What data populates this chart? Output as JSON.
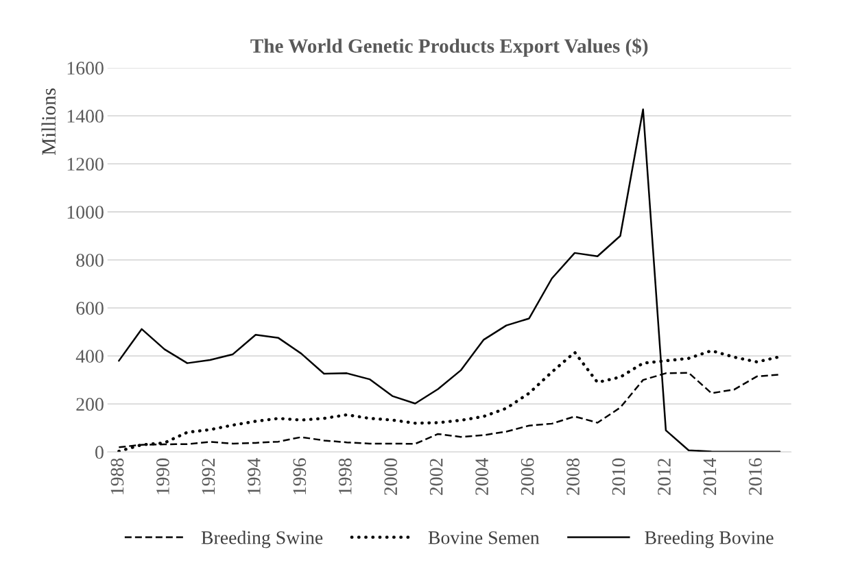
{
  "chart_data": {
    "type": "line",
    "title": "The World Genetic Products Export Values ($)",
    "ylabel": "Millions",
    "categories": [
      "1988",
      null,
      "1990",
      null,
      "1992",
      null,
      "1994",
      null,
      "1996",
      null,
      "1998",
      null,
      "2000",
      null,
      "2002",
      null,
      "2004",
      null,
      "2006",
      null,
      "2008",
      null,
      "2010",
      null,
      "2012",
      null,
      "2014",
      null,
      "2016",
      null
    ],
    "series": [
      {
        "name": "Breeding Swine",
        "color": "#000000",
        "line_style": "dashed",
        "values": [
          20,
          30,
          32,
          33,
          42,
          35,
          38,
          43,
          62,
          48,
          40,
          35,
          35,
          34,
          75,
          63,
          70,
          85,
          110,
          118,
          148,
          122,
          185,
          300,
          328,
          330,
          245,
          260,
          315,
          322
        ]
      },
      {
        "name": "Bovine Semen",
        "color": "#000000",
        "line_style": "dotted",
        "values": [
          3,
          30,
          38,
          82,
          93,
          112,
          128,
          140,
          133,
          140,
          155,
          140,
          133,
          120,
          122,
          132,
          148,
          182,
          245,
          333,
          415,
          290,
          312,
          370,
          380,
          390,
          422,
          395,
          375,
          397
        ]
      },
      {
        "name": "Breeding Bovine",
        "color": "#000000",
        "line_style": "solid",
        "values": [
          380,
          512,
          428,
          370,
          383,
          407,
          488,
          475,
          410,
          326,
          328,
          303,
          233,
          202,
          262,
          340,
          467,
          527,
          556,
          723,
          829,
          815,
          900,
          1427,
          90,
          7,
          2,
          1,
          1,
          1
        ]
      }
    ],
    "ylim": [
      0,
      1600
    ],
    "yticks": [
      0,
      200,
      400,
      600,
      800,
      1000,
      1200,
      1400,
      1600
    ],
    "grid": "y",
    "legend": "bottom"
  }
}
